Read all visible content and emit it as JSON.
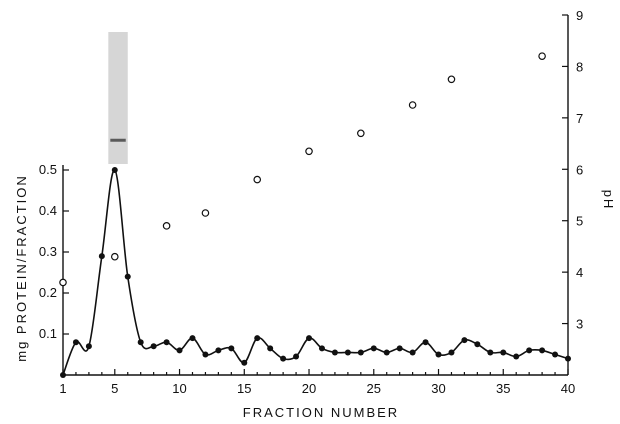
{
  "chart_data": {
    "type": "line",
    "xlabel": "FRACTION NUMBER",
    "ylabel": "mg PROTEIN/FRACTION",
    "y2label": "pH",
    "xlim": [
      1,
      40
    ],
    "ylim": [
      0,
      0.5
    ],
    "y2lim": [
      2,
      9
    ],
    "x_ticks": [
      1,
      5,
      10,
      15,
      20,
      25,
      30,
      35,
      40
    ],
    "y_ticks": [
      0.1,
      0.2,
      0.3,
      0.4,
      0.5
    ],
    "y_tick_labels": [
      "0.1",
      "0.2",
      "0.3",
      "0.4",
      "0.5"
    ],
    "y2_ticks": [
      3,
      4,
      5,
      6,
      7,
      8,
      9
    ],
    "grid": false,
    "series": [
      {
        "marker": "filled-circle",
        "style": "smooth-line",
        "points": [
          [
            1,
            0.0
          ],
          [
            2,
            0.08
          ],
          [
            3,
            0.07
          ],
          [
            4,
            0.29
          ],
          [
            5,
            0.5
          ],
          [
            6,
            0.24
          ],
          [
            7,
            0.08
          ],
          [
            8,
            0.07
          ],
          [
            9,
            0.08
          ],
          [
            10,
            0.06
          ],
          [
            11,
            0.09
          ],
          [
            12,
            0.05
          ],
          [
            13,
            0.06
          ],
          [
            14,
            0.065
          ],
          [
            15,
            0.03
          ],
          [
            16,
            0.09
          ],
          [
            17,
            0.065
          ],
          [
            18,
            0.04
          ],
          [
            19,
            0.045
          ],
          [
            20,
            0.09
          ],
          [
            21,
            0.065
          ],
          [
            22,
            0.055
          ],
          [
            23,
            0.055
          ],
          [
            24,
            0.055
          ],
          [
            25,
            0.065
          ],
          [
            26,
            0.055
          ],
          [
            27,
            0.065
          ],
          [
            28,
            0.055
          ],
          [
            29,
            0.08
          ],
          [
            30,
            0.05
          ],
          [
            31,
            0.055
          ],
          [
            32,
            0.085
          ],
          [
            33,
            0.075
          ],
          [
            34,
            0.055
          ],
          [
            35,
            0.055
          ],
          [
            36,
            0.045
          ],
          [
            37,
            0.06
          ],
          [
            38,
            0.06
          ],
          [
            39,
            0.05
          ],
          [
            40,
            0.04
          ]
        ]
      },
      {
        "marker": "open-circle",
        "style": "points",
        "axis": "right",
        "points": [
          [
            1,
            3.8
          ],
          [
            5,
            4.3
          ],
          [
            9,
            4.9
          ],
          [
            12,
            5.15
          ],
          [
            16,
            5.8
          ],
          [
            20,
            6.35
          ],
          [
            24,
            6.7
          ],
          [
            28,
            7.25
          ],
          [
            31,
            7.75
          ],
          [
            38,
            8.2
          ]
        ]
      }
    ],
    "inset": {
      "type": "gel-lane",
      "x_range": [
        4.5,
        6
      ],
      "band_fraction": 0.82,
      "lane_color": "#d6d6d6",
      "band_color": "#5a5a5a"
    }
  }
}
